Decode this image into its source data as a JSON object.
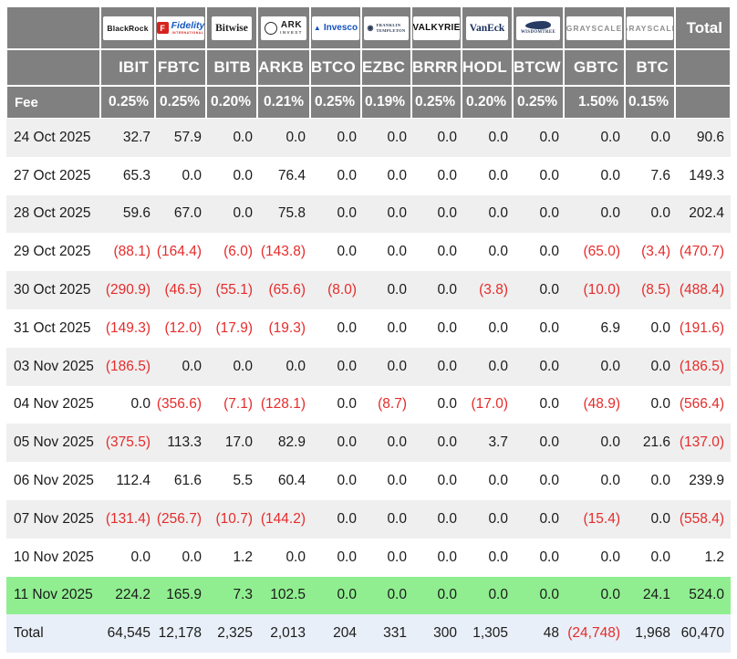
{
  "table": {
    "fee_label": "Fee",
    "total_label": "Total",
    "columns": [
      {
        "ticker": "IBIT",
        "fee": "0.25%",
        "logo": {
          "style": "blackrock",
          "text": "BlackRock",
          "icon": null,
          "text2": null
        }
      },
      {
        "ticker": "FBTC",
        "fee": "0.25%",
        "logo": {
          "style": "fidelity",
          "text": "Fidelity",
          "icon": "F",
          "text2": "INTERNATIONAL"
        }
      },
      {
        "ticker": "BITB",
        "fee": "0.20%",
        "logo": {
          "style": "bitwise",
          "text": "Bitwise",
          "icon": null,
          "text2": null
        }
      },
      {
        "ticker": "ARKB",
        "fee": "0.21%",
        "logo": {
          "style": "ark",
          "text": "ARK",
          "icon": "",
          "text2": "INVEST"
        }
      },
      {
        "ticker": "BTCO",
        "fee": "0.25%",
        "logo": {
          "style": "invesco",
          "text": "Invesco",
          "icon": "▲",
          "text2": null
        }
      },
      {
        "ticker": "EZBC",
        "fee": "0.19%",
        "logo": {
          "style": "franklin",
          "text": "FRANKLIN\nTEMPLETON",
          "icon": "◉",
          "text2": null
        }
      },
      {
        "ticker": "BRRR",
        "fee": "0.25%",
        "logo": {
          "style": "valkyrie",
          "text": "VALKYRIE",
          "icon": null,
          "text2": null
        }
      },
      {
        "ticker": "HODL",
        "fee": "0.20%",
        "logo": {
          "style": "vaneck",
          "text": "VanEck",
          "icon": null,
          "text2": null
        }
      },
      {
        "ticker": "BTCW",
        "fee": "0.25%",
        "logo": {
          "style": "wisdomtree",
          "text": "WISDOMTREE",
          "icon": "",
          "text2": null
        }
      },
      {
        "ticker": "GBTC",
        "fee": "1.50%",
        "logo": {
          "style": "grayscale",
          "text": "GRAYSCALE",
          "icon": null,
          "text2": null
        }
      },
      {
        "ticker": "BTC",
        "fee": "0.15%",
        "logo": {
          "style": "grayscale",
          "text": "GRAYSCALE",
          "icon": null,
          "text2": null
        }
      }
    ],
    "rows": [
      {
        "date": "24 Oct 2025",
        "highlight": false,
        "values": [
          "32.7",
          "57.9",
          "0.0",
          "0.0",
          "0.0",
          "0.0",
          "0.0",
          "0.0",
          "0.0",
          "0.0",
          "0.0",
          "90.6"
        ]
      },
      {
        "date": "27 Oct 2025",
        "highlight": false,
        "values": [
          "65.3",
          "0.0",
          "0.0",
          "76.4",
          "0.0",
          "0.0",
          "0.0",
          "0.0",
          "0.0",
          "0.0",
          "7.6",
          "149.3"
        ]
      },
      {
        "date": "28 Oct 2025",
        "highlight": false,
        "values": [
          "59.6",
          "67.0",
          "0.0",
          "75.8",
          "0.0",
          "0.0",
          "0.0",
          "0.0",
          "0.0",
          "0.0",
          "0.0",
          "202.4"
        ]
      },
      {
        "date": "29 Oct 2025",
        "highlight": false,
        "values": [
          "(88.1)",
          "(164.4)",
          "(6.0)",
          "(143.8)",
          "0.0",
          "0.0",
          "0.0",
          "0.0",
          "0.0",
          "(65.0)",
          "(3.4)",
          "(470.7)"
        ]
      },
      {
        "date": "30 Oct 2025",
        "highlight": false,
        "values": [
          "(290.9)",
          "(46.5)",
          "(55.1)",
          "(65.6)",
          "(8.0)",
          "0.0",
          "0.0",
          "(3.8)",
          "0.0",
          "(10.0)",
          "(8.5)",
          "(488.4)"
        ]
      },
      {
        "date": "31 Oct 2025",
        "highlight": false,
        "values": [
          "(149.3)",
          "(12.0)",
          "(17.9)",
          "(19.3)",
          "0.0",
          "0.0",
          "0.0",
          "0.0",
          "0.0",
          "6.9",
          "0.0",
          "(191.6)"
        ]
      },
      {
        "date": "03 Nov 2025",
        "highlight": false,
        "values": [
          "(186.5)",
          "0.0",
          "0.0",
          "0.0",
          "0.0",
          "0.0",
          "0.0",
          "0.0",
          "0.0",
          "0.0",
          "0.0",
          "(186.5)"
        ]
      },
      {
        "date": "04 Nov 2025",
        "highlight": false,
        "values": [
          "0.0",
          "(356.6)",
          "(7.1)",
          "(128.1)",
          "0.0",
          "(8.7)",
          "0.0",
          "(17.0)",
          "0.0",
          "(48.9)",
          "0.0",
          "(566.4)"
        ]
      },
      {
        "date": "05 Nov 2025",
        "highlight": false,
        "values": [
          "(375.5)",
          "113.3",
          "17.0",
          "82.9",
          "0.0",
          "0.0",
          "0.0",
          "3.7",
          "0.0",
          "0.0",
          "21.6",
          "(137.0)"
        ]
      },
      {
        "date": "06 Nov 2025",
        "highlight": false,
        "values": [
          "112.4",
          "61.6",
          "5.5",
          "60.4",
          "0.0",
          "0.0",
          "0.0",
          "0.0",
          "0.0",
          "0.0",
          "0.0",
          "239.9"
        ]
      },
      {
        "date": "07 Nov 2025",
        "highlight": false,
        "values": [
          "(131.4)",
          "(256.7)",
          "(10.7)",
          "(144.2)",
          "0.0",
          "0.0",
          "0.0",
          "0.0",
          "0.0",
          "(15.4)",
          "0.0",
          "(558.4)"
        ]
      },
      {
        "date": "10 Nov 2025",
        "highlight": false,
        "values": [
          "0.0",
          "0.0",
          "1.2",
          "0.0",
          "0.0",
          "0.0",
          "0.0",
          "0.0",
          "0.0",
          "0.0",
          "0.0",
          "1.2"
        ]
      },
      {
        "date": "11 Nov 2025",
        "highlight": true,
        "values": [
          "224.2",
          "165.9",
          "7.3",
          "102.5",
          "0.0",
          "0.0",
          "0.0",
          "0.0",
          "0.0",
          "0.0",
          "24.1",
          "524.0"
        ]
      }
    ],
    "total_row": {
      "label": "Total",
      "values": [
        "64,545",
        "12,178",
        "2,325",
        "2,013",
        "204",
        "331",
        "300",
        "1,305",
        "48",
        "(24,748)",
        "1,968",
        "60,470"
      ]
    }
  },
  "colors": {
    "header_bg": "#808080",
    "stripe": "#efefef",
    "highlight_green": "#90ee90",
    "total_blue": "#e9eff8",
    "negative_red": "#e62b2b"
  },
  "chart_data": {
    "type": "table",
    "columns": [
      "IBIT",
      "FBTC",
      "BITB",
      "ARKB",
      "BTCO",
      "EZBC",
      "BRRR",
      "HODL",
      "BTCW",
      "GBTC",
      "BTC",
      "Total"
    ],
    "fees_pct": [
      0.25,
      0.25,
      0.2,
      0.21,
      0.25,
      0.19,
      0.25,
      0.2,
      0.25,
      1.5,
      0.15
    ],
    "rows": [
      {
        "date": "24 Oct 2025",
        "values": [
          32.7,
          57.9,
          0,
          0,
          0,
          0,
          0,
          0,
          0,
          0,
          0,
          90.6
        ]
      },
      {
        "date": "27 Oct 2025",
        "values": [
          65.3,
          0,
          0,
          76.4,
          0,
          0,
          0,
          0,
          0,
          0,
          7.6,
          149.3
        ]
      },
      {
        "date": "28 Oct 2025",
        "values": [
          59.6,
          67.0,
          0,
          75.8,
          0,
          0,
          0,
          0,
          0,
          0,
          0,
          202.4
        ]
      },
      {
        "date": "29 Oct 2025",
        "values": [
          -88.1,
          -164.4,
          -6.0,
          -143.8,
          0,
          0,
          0,
          0,
          0,
          -65.0,
          -3.4,
          -470.7
        ]
      },
      {
        "date": "30 Oct 2025",
        "values": [
          -290.9,
          -46.5,
          -55.1,
          -65.6,
          -8.0,
          0,
          0,
          -3.8,
          0,
          -10.0,
          -8.5,
          -488.4
        ]
      },
      {
        "date": "31 Oct 2025",
        "values": [
          -149.3,
          -12.0,
          -17.9,
          -19.3,
          0,
          0,
          0,
          0,
          0,
          6.9,
          0,
          -191.6
        ]
      },
      {
        "date": "03 Nov 2025",
        "values": [
          -186.5,
          0,
          0,
          0,
          0,
          0,
          0,
          0,
          0,
          0,
          0,
          -186.5
        ]
      },
      {
        "date": "04 Nov 2025",
        "values": [
          0,
          -356.6,
          -7.1,
          -128.1,
          0,
          -8.7,
          0,
          -17.0,
          0,
          -48.9,
          0,
          -566.4
        ]
      },
      {
        "date": "05 Nov 2025",
        "values": [
          -375.5,
          113.3,
          17.0,
          82.9,
          0,
          0,
          0,
          3.7,
          0,
          0,
          21.6,
          -137.0
        ]
      },
      {
        "date": "06 Nov 2025",
        "values": [
          112.4,
          61.6,
          5.5,
          60.4,
          0,
          0,
          0,
          0,
          0,
          0,
          0,
          239.9
        ]
      },
      {
        "date": "07 Nov 2025",
        "values": [
          -131.4,
          -256.7,
          -10.7,
          -144.2,
          0,
          0,
          0,
          0,
          0,
          -15.4,
          0,
          -558.4
        ]
      },
      {
        "date": "10 Nov 2025",
        "values": [
          0,
          0,
          1.2,
          0,
          0,
          0,
          0,
          0,
          0,
          0,
          0,
          1.2
        ]
      },
      {
        "date": "11 Nov 2025",
        "values": [
          224.2,
          165.9,
          7.3,
          102.5,
          0,
          0,
          0,
          0,
          0,
          0,
          24.1,
          524.0
        ]
      }
    ],
    "total": [
      64545,
      12178,
      2325,
      2013,
      204,
      331,
      300,
      1305,
      48,
      -24748,
      1968,
      60470
    ],
    "highlighted_row": "11 Nov 2025"
  }
}
